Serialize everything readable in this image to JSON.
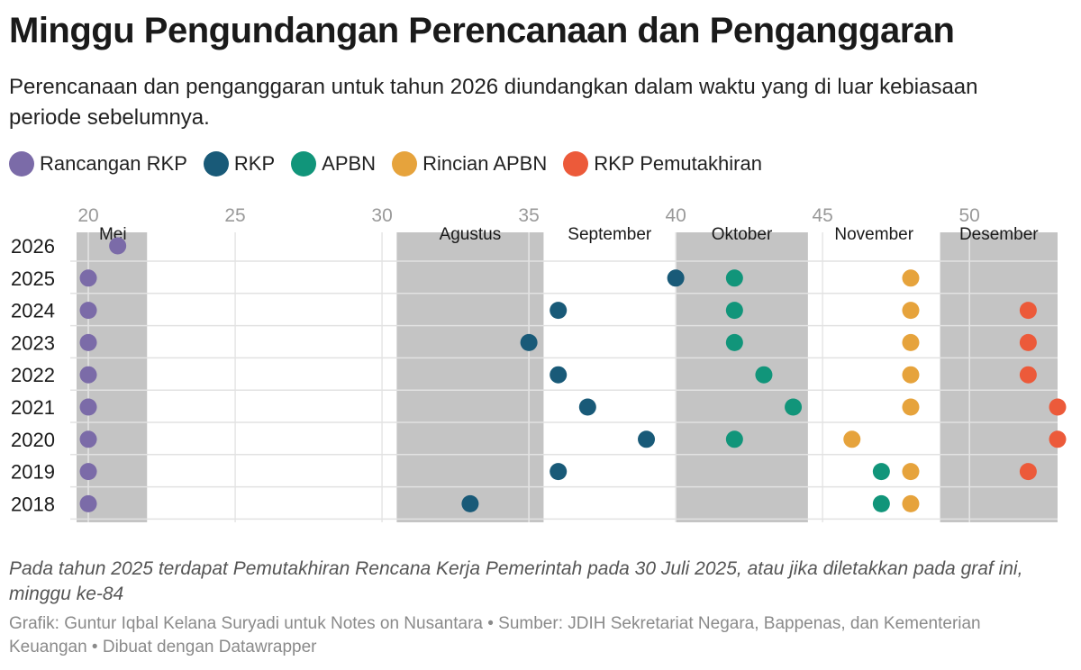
{
  "title": "Minggu Pengundangan Perencanaan dan Penganggaran",
  "subtitle": "Perencanaan dan penganggaran untuk tahun 2026 diundangkan dalam waktu yang di luar kebiasaan periode sebelumnya.",
  "note": "Pada tahun 2025 terdapat Pemutakhiran Rencana Kerja Pemerintah pada 30 Juli 2025, atau jika diletakkan pada graf ini, minggu ke-84",
  "footer": "Grafik: Guntur Iqbal Kelana Suryadi untuk Notes on Nusantara • Sumber: JDIH Sekretariat Negara, Bappenas, dan Kementerian Keuangan • Dibuat dengan Datawrapper",
  "legend": [
    {
      "label": "Rancangan RKP",
      "color": "#7b6ba8"
    },
    {
      "label": "RKP",
      "color": "#195a78"
    },
    {
      "label": "APBN",
      "color": "#11957a"
    },
    {
      "label": "Rincian APBN",
      "color": "#e6a33c"
    },
    {
      "label": "RKP Pemutakhiran",
      "color": "#ec5a3a"
    }
  ],
  "chart_data": {
    "type": "scatter",
    "xlim": [
      19.6,
      53
    ],
    "x_ticks": [
      20,
      25,
      30,
      35,
      40,
      45,
      50
    ],
    "grid": true,
    "categories": [
      "2026",
      "2025",
      "2024",
      "2023",
      "2022",
      "2021",
      "2020",
      "2019",
      "2018"
    ],
    "months": [
      {
        "label": "Mei",
        "start": 19.6,
        "end": 22,
        "shaded": true
      },
      {
        "label": "Agustus",
        "start": 30.5,
        "end": 35.5,
        "shaded": true
      },
      {
        "label": "September",
        "start": 35.5,
        "end": 40,
        "shaded": false
      },
      {
        "label": "Oktober",
        "start": 40,
        "end": 44.5,
        "shaded": true
      },
      {
        "label": "November",
        "start": 44.5,
        "end": 49,
        "shaded": false
      },
      {
        "label": "Desember",
        "start": 49,
        "end": 53,
        "shaded": true
      }
    ],
    "series": [
      {
        "name": "Rancangan RKP",
        "color": "#7b6ba8",
        "points": [
          {
            "year": "2026",
            "week": 21
          },
          {
            "year": "2025",
            "week": 20
          },
          {
            "year": "2024",
            "week": 20
          },
          {
            "year": "2023",
            "week": 20
          },
          {
            "year": "2022",
            "week": 20
          },
          {
            "year": "2021",
            "week": 20
          },
          {
            "year": "2020",
            "week": 20
          },
          {
            "year": "2019",
            "week": 20
          },
          {
            "year": "2018",
            "week": 20
          }
        ]
      },
      {
        "name": "RKP",
        "color": "#195a78",
        "points": [
          {
            "year": "2025",
            "week": 40
          },
          {
            "year": "2024",
            "week": 36
          },
          {
            "year": "2023",
            "week": 35
          },
          {
            "year": "2022",
            "week": 36
          },
          {
            "year": "2021",
            "week": 37
          },
          {
            "year": "2020",
            "week": 39
          },
          {
            "year": "2019",
            "week": 36
          },
          {
            "year": "2018",
            "week": 33
          }
        ]
      },
      {
        "name": "APBN",
        "color": "#11957a",
        "points": [
          {
            "year": "2025",
            "week": 42
          },
          {
            "year": "2024",
            "week": 42
          },
          {
            "year": "2023",
            "week": 42
          },
          {
            "year": "2022",
            "week": 43
          },
          {
            "year": "2021",
            "week": 44
          },
          {
            "year": "2020",
            "week": 42
          },
          {
            "year": "2019",
            "week": 47
          },
          {
            "year": "2018",
            "week": 47
          }
        ]
      },
      {
        "name": "Rincian APBN",
        "color": "#e6a33c",
        "points": [
          {
            "year": "2025",
            "week": 48
          },
          {
            "year": "2024",
            "week": 48
          },
          {
            "year": "2023",
            "week": 48
          },
          {
            "year": "2022",
            "week": 48
          },
          {
            "year": "2021",
            "week": 48
          },
          {
            "year": "2020",
            "week": 46
          },
          {
            "year": "2019",
            "week": 48
          },
          {
            "year": "2018",
            "week": 48
          }
        ]
      },
      {
        "name": "RKP Pemutakhiran",
        "color": "#ec5a3a",
        "points": [
          {
            "year": "2024",
            "week": 52
          },
          {
            "year": "2023",
            "week": 52
          },
          {
            "year": "2022",
            "week": 52
          },
          {
            "year": "2021",
            "week": 53
          },
          {
            "year": "2020",
            "week": 53
          },
          {
            "year": "2019",
            "week": 52
          }
        ]
      }
    ]
  }
}
